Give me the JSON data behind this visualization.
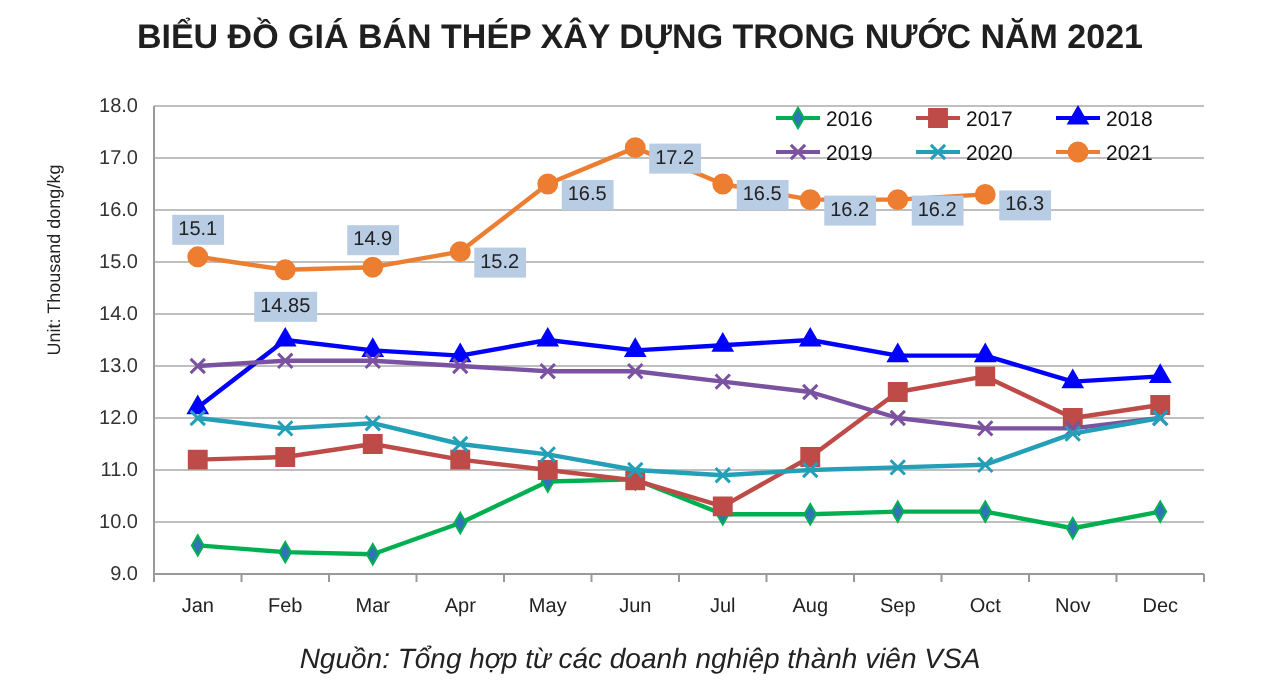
{
  "chart_data": {
    "type": "line",
    "title": "BIỂU ĐỒ GIÁ BÁN THÉP XÂY DỰNG TRONG NƯỚC NĂM 2021",
    "ylabel": "Unit: Thousand dong/kg",
    "annotations": [
      "Nguồn: Tổng hợp từ các doanh nghiệp thành viên VSA"
    ],
    "categories": [
      "Jan",
      "Feb",
      "Mar",
      "Apr",
      "May",
      "Jun",
      "Jul",
      "Aug",
      "Sep",
      "Oct",
      "Nov",
      "Dec"
    ],
    "ylim": [
      9,
      18
    ],
    "yticks": [
      {
        "value": 9,
        "label": "9.0"
      },
      {
        "value": 10,
        "label": "10.0"
      },
      {
        "value": 11,
        "label": "11.0"
      },
      {
        "value": 12,
        "label": "12.0"
      },
      {
        "value": 13,
        "label": "13.0"
      },
      {
        "value": 14,
        "label": "14.0"
      },
      {
        "value": 15,
        "label": "15.0"
      },
      {
        "value": 16,
        "label": "16.0"
      },
      {
        "value": 17,
        "label": "17.0"
      },
      {
        "value": 18,
        "label": "18.0"
      }
    ],
    "grid": "y",
    "legend": "top right",
    "line_style": "solid",
    "series": [
      {
        "name": "2016",
        "color": "#00b050",
        "marker": "diamond",
        "values": [
          9.55,
          9.42,
          9.38,
          9.98,
          10.78,
          10.82,
          10.15,
          10.15,
          10.2,
          10.2,
          9.88,
          10.2
        ]
      },
      {
        "name": "2017",
        "color": "#be4b48",
        "marker": "square",
        "values": [
          11.2,
          11.25,
          11.5,
          11.2,
          11.0,
          10.8,
          10.3,
          11.25,
          12.5,
          12.8,
          12.0,
          12.25
        ]
      },
      {
        "name": "2018",
        "color": "#0000ff",
        "marker": "triangle",
        "values": [
          12.2,
          13.5,
          13.3,
          13.2,
          13.5,
          13.3,
          13.4,
          13.5,
          13.2,
          13.2,
          12.7,
          12.8
        ]
      },
      {
        "name": "2019",
        "color": "#7b52a0",
        "marker": "cross",
        "values": [
          13.0,
          13.1,
          13.1,
          13.0,
          12.9,
          12.9,
          12.7,
          12.5,
          12.0,
          11.8,
          11.8,
          12.0
        ]
      },
      {
        "name": "2020",
        "color": "#23a0b8",
        "marker": "cross",
        "values": [
          12.0,
          11.8,
          11.9,
          11.5,
          11.3,
          11.0,
          10.9,
          11.0,
          11.05,
          11.1,
          11.7,
          12.0
        ]
      },
      {
        "name": "2021",
        "color": "#ed7d31",
        "marker": "circle",
        "values": [
          15.1,
          14.85,
          14.9,
          15.2,
          16.5,
          17.2,
          16.5,
          16.2,
          16.2,
          16.3,
          null,
          null
        ],
        "value_labels": [
          "15.1",
          "14.85",
          "14.9",
          "15.2",
          "16.5",
          "17.2",
          "16.5",
          "16.2",
          "16.2",
          "16.3",
          null,
          null
        ]
      }
    ]
  }
}
